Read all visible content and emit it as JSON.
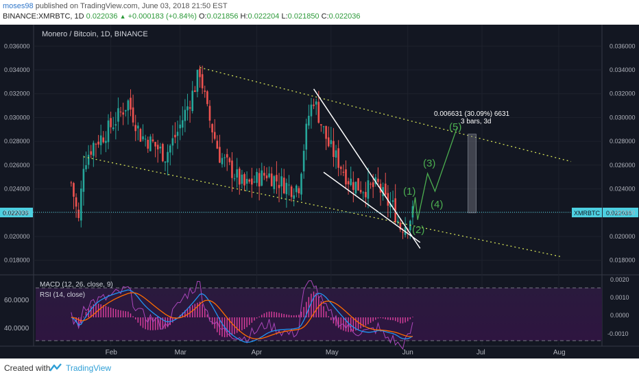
{
  "header": {
    "user": "moses98",
    "published_text": "published on TradingView.com, June 03, 2018 21:50 EST",
    "symbol_line": "BINANCE:XMRBTC, 1D",
    "last": "0.022036",
    "change": "+0.000183 (+0.84%)",
    "o_label": "O:",
    "o_value": "0.021856",
    "h_label": "H:",
    "h_value": "0.022204",
    "l_label": "L:",
    "l_value": "0.021850",
    "c_label": "C:",
    "c_value": "0.022036"
  },
  "chart_title": "Monero / Bitcoin, 1D, BINANCE",
  "ticker_tag": "XMRBTC",
  "price_tag": "0.022036",
  "measure": {
    "line1": "0.006631 (30.09%) 6631",
    "line2": "3 bars, 3d"
  },
  "wave_labels": [
    "(1)",
    "(2)",
    "(3)",
    "(4)",
    "(5)"
  ],
  "indicators": {
    "macd_label": "MACD (12, 26, close, 9)",
    "rsi_label": "RSI (14, close)"
  },
  "footer": {
    "created_with": "Created with",
    "brand": "TradingView"
  },
  "colors": {
    "bg": "#131722",
    "up": "#26a69a",
    "down": "#ef5350",
    "wave": "#4caf50",
    "trend": "#d4e157",
    "wedge": "#ffffff",
    "macd": "#2196f3",
    "signal": "#ff6d00",
    "rsi": "#9c27b0"
  },
  "chart_data": {
    "type": "candlestick",
    "title": "Monero / Bitcoin, 1D, BINANCE",
    "y_axis": {
      "range": [
        0.0175,
        0.0372
      ],
      "ticks": [
        "0.018000",
        "0.020000",
        "0.022000",
        "0.024000",
        "0.026000",
        "0.028000",
        "0.030000",
        "0.032000",
        "0.034000",
        "0.036000"
      ]
    },
    "x_axis": {
      "ticks": [
        "Feb",
        "Mar",
        "Apr",
        "May",
        "Jun",
        "Jul",
        "Aug"
      ]
    },
    "close_path": [
      {
        "d": "Jan 16",
        "v": 0.0245
      },
      {
        "d": "Jan 19",
        "v": 0.0213
      },
      {
        "d": "Jan 21",
        "v": 0.0262
      },
      {
        "d": "Jan 25",
        "v": 0.0278
      },
      {
        "d": "Jan 29",
        "v": 0.0285
      },
      {
        "d": "Feb 3",
        "v": 0.0298
      },
      {
        "d": "Feb 8",
        "v": 0.0313
      },
      {
        "d": "Feb 13",
        "v": 0.0285
      },
      {
        "d": "Feb 18",
        "v": 0.0278
      },
      {
        "d": "Feb 23",
        "v": 0.0268
      },
      {
        "d": "Feb 28",
        "v": 0.0288
      },
      {
        "d": "Mar 6",
        "v": 0.032
      },
      {
        "d": "Mar 9",
        "v": 0.0339
      },
      {
        "d": "Mar 12",
        "v": 0.0305
      },
      {
        "d": "Mar 17",
        "v": 0.0268
      },
      {
        "d": "Mar 22",
        "v": 0.0255
      },
      {
        "d": "Mar 27",
        "v": 0.0242
      },
      {
        "d": "Apr 1",
        "v": 0.0248
      },
      {
        "d": "Apr 5",
        "v": 0.0253
      },
      {
        "d": "Apr 10",
        "v": 0.0246
      },
      {
        "d": "Apr 15",
        "v": 0.0241
      },
      {
        "d": "Apr 18",
        "v": 0.0243
      },
      {
        "d": "Apr 20",
        "v": 0.0275
      },
      {
        "d": "Apr 22",
        "v": 0.0302
      },
      {
        "d": "Apr 24",
        "v": 0.0316
      },
      {
        "d": "Apr 27",
        "v": 0.0295
      },
      {
        "d": "Apr 30",
        "v": 0.0277
      },
      {
        "d": "May 4",
        "v": 0.0263
      },
      {
        "d": "May 8",
        "v": 0.0248
      },
      {
        "d": "May 12",
        "v": 0.0242
      },
      {
        "d": "May 16",
        "v": 0.024
      },
      {
        "d": "May 20",
        "v": 0.0243
      },
      {
        "d": "May 23",
        "v": 0.023
      },
      {
        "d": "May 26",
        "v": 0.0225
      },
      {
        "d": "May 29",
        "v": 0.0208
      },
      {
        "d": "Jun 1",
        "v": 0.0212
      },
      {
        "d": "Jun 3",
        "v": 0.022
      }
    ],
    "trendlines": [
      {
        "name": "upper channel",
        "from": {
          "d": "Mar 9",
          "v": 0.0342
        },
        "to": {
          "d": "Aug 6",
          "v": 0.0263
        }
      },
      {
        "name": "lower channel",
        "from": {
          "d": "Jan 21",
          "v": 0.0267
        },
        "to": {
          "d": "Aug 2",
          "v": 0.0183
        }
      },
      {
        "name": "wedge upper",
        "from": {
          "d": "Apr 24",
          "v": 0.0324
        },
        "to": {
          "d": "Jun 6",
          "v": 0.019
        }
      },
      {
        "name": "wedge lower",
        "from": {
          "d": "Apr 28",
          "v": 0.0254
        },
        "to": {
          "d": "Jun 6",
          "v": 0.0195
        }
      }
    ],
    "projection": [
      {
        "d": "Jun 3",
        "v": 0.0218
      },
      {
        "d": "Jun 4",
        "v": 0.0233
      },
      {
        "d": "Jun 5",
        "v": 0.0214
      },
      {
        "d": "Jun 9",
        "v": 0.0253
      },
      {
        "d": "Jun 12",
        "v": 0.0238
      },
      {
        "d": "Jun 21",
        "v": 0.0292
      }
    ],
    "measure_box": {
      "d": "Jun 27",
      "from": 0.022,
      "to": 0.0286
    }
  }
}
